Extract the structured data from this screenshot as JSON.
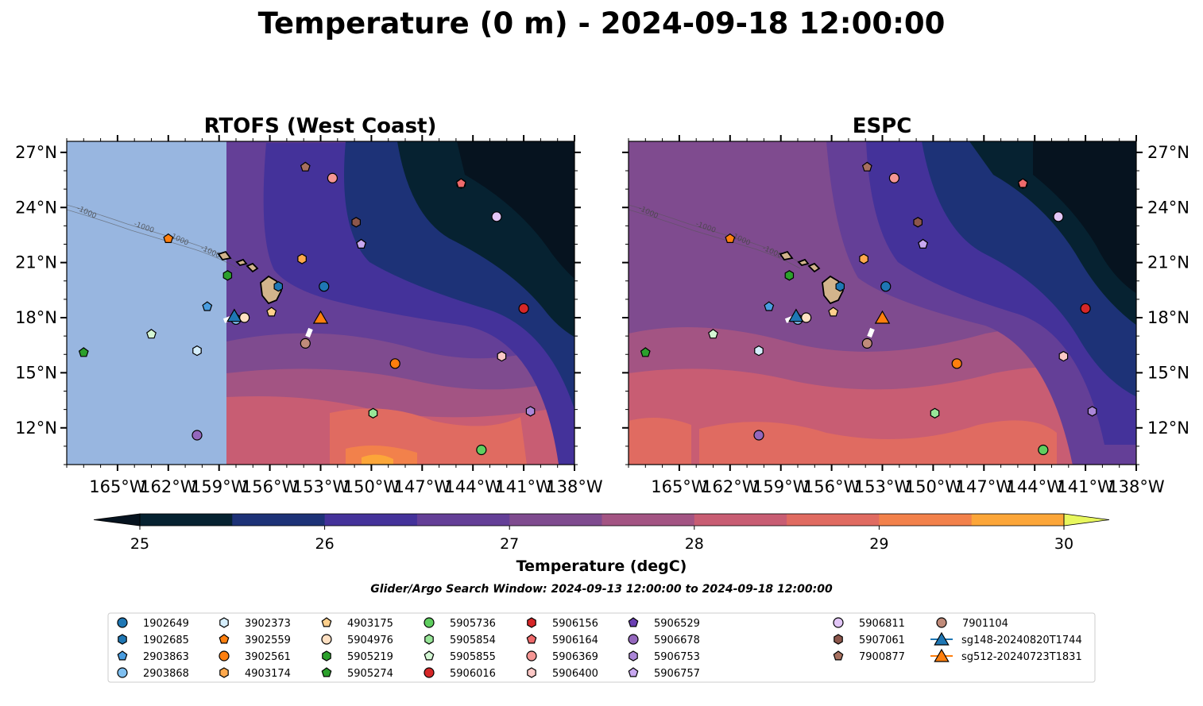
{
  "figure": {
    "title": "Temperature (0 m) - 2024-09-18 12:00:00",
    "subtitle": "Glider/Argo Search Window: 2024-09-13 12:00:00 to 2024-09-18 12:00:00"
  },
  "chart_data": {
    "type": "heatmap",
    "panels": [
      {
        "title": "RTOFS (West Coast)",
        "lat_tick_side": "left",
        "data_lon_min": -157.4,
        "no_data_color": "#98b6e0"
      },
      {
        "title": "ESPC",
        "lat_tick_side": "right",
        "data_lon_min": -168
      }
    ],
    "xlim": [
      -168,
      -138
    ],
    "ylim": [
      10,
      27.6
    ],
    "x_ticks": [
      -165,
      -162,
      -159,
      -156,
      -153,
      -150,
      -147,
      -144,
      -141,
      -138
    ],
    "x_tick_labels": [
      "165°W",
      "162°W",
      "159°W",
      "156°W",
      "153°W",
      "150°W",
      "147°W",
      "144°W",
      "141°W",
      "138°W"
    ],
    "y_ticks": [
      12,
      15,
      18,
      21,
      24,
      27
    ],
    "y_tick_labels": [
      "12°N",
      "15°N",
      "18°N",
      "21°N",
      "24°N",
      "27°N"
    ],
    "contour_label": "-1000",
    "colorbar": {
      "label": "Temperature (degC)",
      "min": 25,
      "max": 30,
      "step": 0.5,
      "ticks": [
        25,
        26,
        27,
        28,
        29,
        30
      ],
      "tick_labels": [
        "25",
        "26",
        "27",
        "28",
        "29",
        "30"
      ],
      "colors": [
        "#062231",
        "#1d3277",
        "#44329a",
        "#643f97",
        "#7f4b8f",
        "#a35483",
        "#c85d73",
        "#e06b61",
        "#f2814b",
        "#fca639",
        "#fbd040"
      ],
      "under": "#06131f",
      "over": "#e8f75e"
    },
    "legend": [
      {
        "name": "1902649",
        "marker": "circle",
        "color": "#1f77b4",
        "lon": -152.8,
        "lat": 19.7
      },
      {
        "name": "1902685",
        "marker": "hexagon",
        "color": "#1f77b4",
        "lon": -155.5,
        "lat": 19.7
      },
      {
        "name": "2903863",
        "marker": "pentagon",
        "color": "#4a9de0",
        "lon": -159.7,
        "lat": 18.6
      },
      {
        "name": "2903868",
        "marker": "circle",
        "color": "#7fbff0",
        "lon": -158.0,
        "lat": 17.9
      },
      {
        "name": "3902373",
        "marker": "hexagon",
        "color": "#d5eefc",
        "lon": -160.3,
        "lat": 16.2
      },
      {
        "name": "3902559",
        "marker": "pentagon",
        "color": "#ff7f0e",
        "lon": -162.0,
        "lat": 22.3
      },
      {
        "name": "3902561",
        "marker": "circle",
        "color": "#ff7f0e",
        "lon": -148.6,
        "lat": 15.5
      },
      {
        "name": "4903174",
        "marker": "hexagon",
        "color": "#ffa94d",
        "lon": -154.1,
        "lat": 21.2
      },
      {
        "name": "4903175",
        "marker": "pentagon",
        "color": "#ffd08c",
        "lon": -155.9,
        "lat": 18.3
      },
      {
        "name": "5904976",
        "marker": "circle",
        "color": "#ffe0c2",
        "lon": -157.5,
        "lat": 18.0
      },
      {
        "name": "5905219",
        "marker": "hexagon",
        "color": "#2ca02c",
        "lon": -158.5,
        "lat": 20.3
      },
      {
        "name": "5905274",
        "marker": "pentagon",
        "color": "#2ca02c",
        "lon": -167.0,
        "lat": 16.1
      },
      {
        "name": "5905736",
        "marker": "circle",
        "color": "#5fce5f",
        "lon": -143.5,
        "lat": 10.8
      },
      {
        "name": "5905854",
        "marker": "hexagon",
        "color": "#98e698",
        "lon": -149.9,
        "lat": 12.8
      },
      {
        "name": "5905855",
        "marker": "pentagon",
        "color": "#d4f7d4",
        "lon": -163.0,
        "lat": 17.1
      },
      {
        "name": "5906016",
        "marker": "circle",
        "color": "#d62728",
        "lon": -141.0,
        "lat": 18.5
      },
      {
        "name": "5906156",
        "marker": "hexagon",
        "color": "#d62728",
        "lon": -144.7,
        "lat": 25.3
      },
      {
        "name": "5906164",
        "marker": "pentagon",
        "color": "#ef6a6b",
        "lon": -144.7,
        "lat": 25.3
      },
      {
        "name": "5906369",
        "marker": "circle",
        "color": "#f59694",
        "lon": -152.3,
        "lat": 25.6
      },
      {
        "name": "5906400",
        "marker": "hexagon",
        "color": "#fcc8c6",
        "lon": -142.3,
        "lat": 15.9
      },
      {
        "name": "5906529",
        "marker": "pentagon",
        "color": "#6a3fb2",
        "lon": -150.6,
        "lat": 22.0
      },
      {
        "name": "5906678",
        "marker": "circle",
        "color": "#9467bd",
        "lon": -160.3,
        "lat": 11.6
      },
      {
        "name": "5906753",
        "marker": "hexagon",
        "color": "#ab86d8",
        "lon": -140.6,
        "lat": 12.9
      },
      {
        "name": "5906757",
        "marker": "pentagon",
        "color": "#c8a8f0",
        "lon": -150.6,
        "lat": 22.0
      },
      {
        "name": "5906811",
        "marker": "circle",
        "color": "#e2c6f7",
        "lon": -142.6,
        "lat": 23.5
      },
      {
        "name": "5907061",
        "marker": "hexagon",
        "color": "#8c564b",
        "lon": -150.9,
        "lat": 23.2
      },
      {
        "name": "7900877",
        "marker": "pentagon",
        "color": "#a7705f",
        "lon": -153.9,
        "lat": 26.2
      },
      {
        "name": "7901104",
        "marker": "circle",
        "color": "#c08b7a",
        "lon": -153.9,
        "lat": 16.6
      },
      {
        "name": "sg148-20240820T1744",
        "marker": "triangle",
        "color": "#1f77b4",
        "line": true,
        "lon": -158.1,
        "lat": 18.1
      },
      {
        "name": "sg512-20240723T1831",
        "marker": "triangle",
        "color": "#ff7f0e",
        "line": true,
        "lon": -153.0,
        "lat": 18.0
      }
    ]
  }
}
